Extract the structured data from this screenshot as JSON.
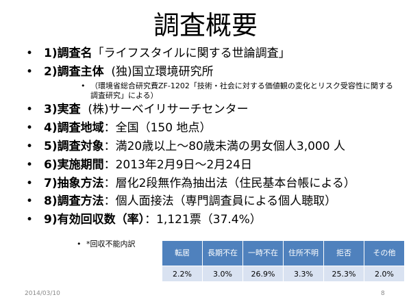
{
  "slide": {
    "title": "調査概要",
    "bullet_glyph": "•",
    "items": [
      {
        "label": "1)調査名",
        "sep": "",
        "value": "「ライフスタイルに関する世論調査」"
      },
      {
        "label": "2)調査主体",
        "sep": "  ",
        "value": "(独)国立環境研究所"
      },
      {
        "label": "3)実査",
        "sep": "  ",
        "value": "(株)サーベイリサーチセンター"
      },
      {
        "label": "4)調査地域",
        "sep": "：",
        "value": "全国（150 地点）"
      },
      {
        "label": "5)調査対象",
        "sep": "：",
        "value": "満20歳以上～80歳未満の男女個人3,000 人"
      },
      {
        "label": "6)実施期間",
        "sep": "：",
        "value": "2013年2月9日～2月24日"
      },
      {
        "label": "7)抽象方法",
        "sep": "：",
        "value": "層化2段無作為抽出法（住民基本台帳による）"
      },
      {
        "label": "8)調査方法",
        "sep": "：",
        "value": "個人面接法（専門調査員による個人聴取）"
      },
      {
        "label": "9)有効回収数（率）",
        "sep": "：",
        "value": "1,121票（37.4%）"
      }
    ],
    "sub_note": "（環境省総合研究費ZF-1202「技術・社会に対する価値観の変化とリスク受容性に関する調査研究」による）",
    "unrecovered_note": "*回収不能内訳",
    "table": {
      "headers": [
        "転居",
        "長期不在",
        "一時不在",
        "住所不明",
        "拒否",
        "その他"
      ],
      "values": [
        "2.2%",
        "3.0%",
        "26.9%",
        "3.3%",
        "25.3%",
        "2.0%"
      ]
    },
    "footer": {
      "date": "2014/03/10",
      "page": "8"
    }
  }
}
